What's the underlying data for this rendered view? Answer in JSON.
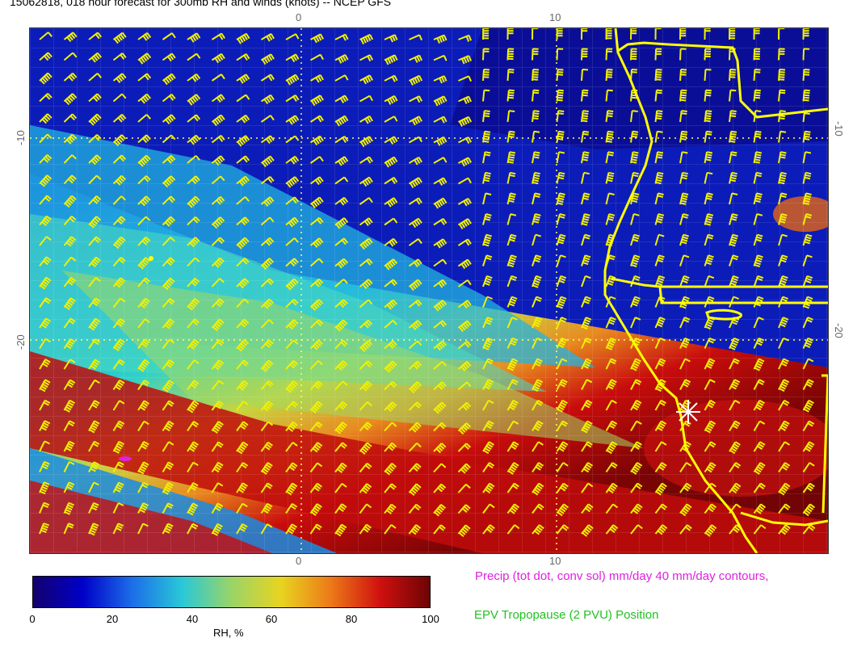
{
  "title": "15062818, 018 hour forecast for 300mb RH and winds (knots) -- NCEP GFS",
  "axes": {
    "top": [
      "0",
      "10"
    ],
    "bottom": [
      "0",
      "10"
    ],
    "left": [
      "-10",
      "-20"
    ],
    "right": [
      "-10",
      "-20"
    ]
  },
  "colorbar": {
    "ticks": [
      "0",
      "20",
      "40",
      "60",
      "80",
      "100"
    ],
    "label": "RH, %",
    "colors": [
      "#14006e",
      "#0000c8",
      "#1c6ee8",
      "#28c8d8",
      "#9ad468",
      "#e8d420",
      "#ec7a18",
      "#d01010",
      "#6e0404"
    ]
  },
  "legend": {
    "precip": "Precip (tot dot, conv sol) mm/day 40 mm/day contours,",
    "precip_color": "#e020e0",
    "epv": "EPV Tropopause (2 PVU) Position",
    "epv_color": "#22c022"
  },
  "overlay_colors": {
    "barbs": "#f0f000",
    "coastline": "#ffff00",
    "grid": "#ffff66"
  }
}
